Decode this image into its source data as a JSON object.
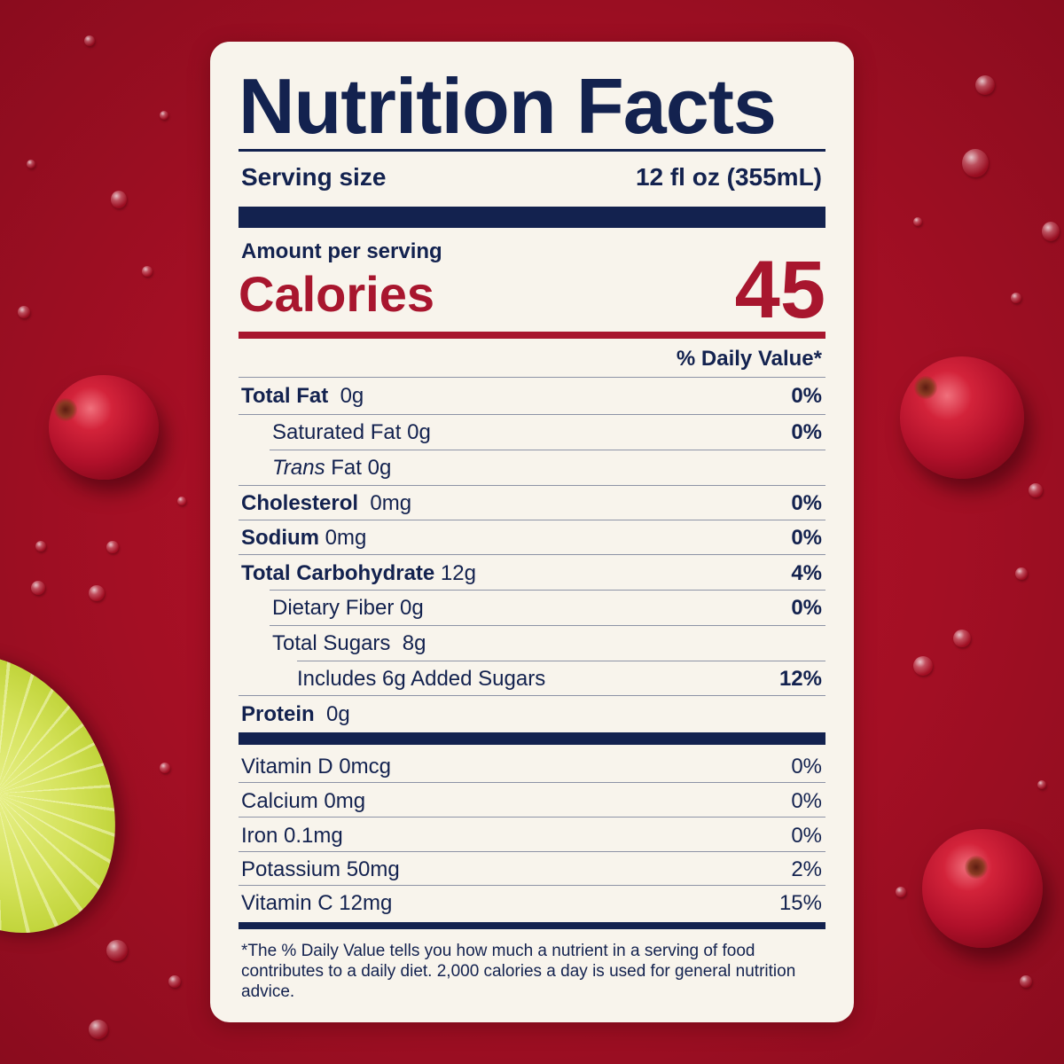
{
  "label": {
    "title": "Nutrition Facts",
    "serving_size_label": "Serving size",
    "serving_size_value": "12 fl oz (355mL)",
    "amount_per_serving": "Amount per serving",
    "calories_label": "Calories",
    "calories_value": "45",
    "daily_value_header": "% Daily Value*",
    "nutrients": [
      {
        "name": "Total Fat",
        "amount": "0g",
        "dv": "0%"
      },
      {
        "name": "Saturated Fat",
        "amount": "0g",
        "dv": "0%"
      },
      {
        "name_prefix": "Trans",
        "name": "Fat",
        "amount": "0g"
      },
      {
        "name": "Cholesterol",
        "amount": "0mg",
        "dv": "0%"
      },
      {
        "name": "Sodium",
        "amount": "0mg",
        "dv": "0%"
      },
      {
        "name": "Total Carbohydrate",
        "amount": "12g",
        "dv": "4%"
      },
      {
        "name": "Dietary Fiber",
        "amount": "0g",
        "dv": "0%"
      },
      {
        "name": "Total Sugars",
        "amount": "8g"
      },
      {
        "name": "Includes 6g Added Sugars",
        "dv": "12%"
      },
      {
        "name": "Protein",
        "amount": "0g"
      }
    ],
    "vitamins": [
      {
        "name": "Vitamin D 0mcg",
        "dv": "0%"
      },
      {
        "name": "Calcium 0mg",
        "dv": "0%"
      },
      {
        "name": "Iron 0.1mg",
        "dv": "0%"
      },
      {
        "name": "Potassium 50mg",
        "dv": "2%"
      },
      {
        "name": "Vitamin C 12mg",
        "dv": "15%"
      }
    ],
    "footnote": "*The % Daily Value tells you how much a nutrient in a serving of food contributes to a daily diet. 2,000 calories a day is used for general nutrition advice."
  },
  "colors": {
    "background": "#a30f24",
    "label_navy": "#13224f",
    "label_red": "#a8162e",
    "card": "#f8f4ec"
  }
}
